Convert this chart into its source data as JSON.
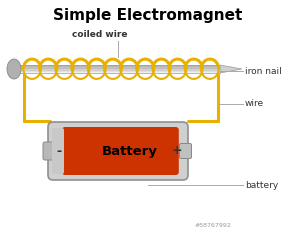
{
  "title": "Simple Electromagnet",
  "title_fontsize": 11,
  "title_fontweight": "bold",
  "background_color": "#ffffff",
  "label_iron_nail": "iron nail",
  "label_coiled_wire": "coiled wire",
  "label_wire": "wire",
  "label_battery": "battery",
  "label_battery_text": "Battery",
  "label_minus": "-",
  "label_plus": "+",
  "watermark": "#58767992",
  "nail_color": "#c8c8c8",
  "nail_grad_light": "#e8e8e8",
  "nail_grad_dark": "#a0a0a0",
  "coil_color": "#e8b000",
  "wire_color": "#e8b000",
  "battery_body_color": "#c0c0c0",
  "battery_red_color": "#cc3300",
  "label_color": "#333333",
  "label_line_color": "#aaaaaa",
  "label_fontsize": 6.5
}
